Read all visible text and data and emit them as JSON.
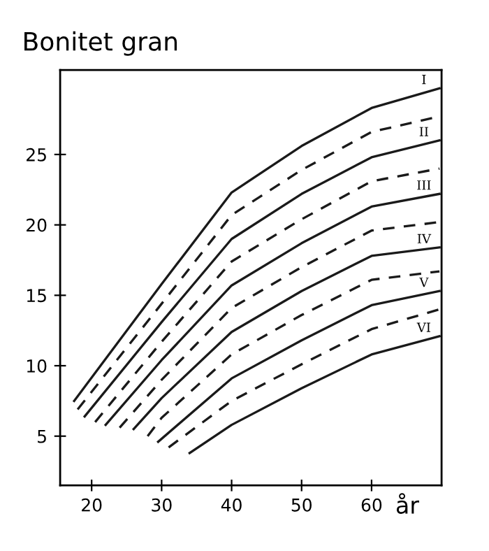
{
  "chart_data": {
    "type": "line",
    "title": "Bonitet gran",
    "xlabel": "år",
    "xlim": [
      15.5,
      70
    ],
    "ylim": [
      1.5,
      31
    ],
    "xticks": [
      20,
      30,
      40,
      50,
      60
    ],
    "yticks": [
      5,
      10,
      15,
      20,
      25
    ],
    "grid": false,
    "legend": false,
    "marker": "none",
    "series": [
      {
        "name": "I",
        "color": "#1a1a1a",
        "line_style": "solid",
        "x": [
          17.5,
          30,
          40,
          50,
          60,
          69.7
        ],
        "values": [
          7.5,
          15.8,
          22.3,
          25.6,
          28.3,
          29.7
        ]
      },
      {
        "color": "#1a1a1a",
        "line_style": "dashed",
        "x": [
          18,
          30,
          40,
          50,
          60,
          69.7
        ],
        "values": [
          6.9,
          14.4,
          20.7,
          23.9,
          26.6,
          27.7
        ]
      },
      {
        "name": "II",
        "color": "#1a1a1a",
        "line_style": "solid",
        "x": [
          19,
          30,
          40,
          50,
          60,
          69.7
        ],
        "values": [
          6.4,
          13.1,
          19.0,
          22.2,
          24.8,
          26.0
        ]
      },
      {
        "color": "#1a1a1a",
        "line_style": "dashed",
        "x": [
          20.5,
          30,
          40,
          50,
          60,
          69.7
        ],
        "values": [
          6.0,
          11.7,
          17.4,
          20.4,
          23.1,
          24.0
        ]
      },
      {
        "name": "III",
        "color": "#1a1a1a",
        "line_style": "solid",
        "x": [
          22,
          30,
          40,
          50,
          60,
          69.7
        ],
        "values": [
          5.8,
          10.4,
          15.7,
          18.7,
          21.3,
          22.2
        ]
      },
      {
        "color": "#1a1a1a",
        "line_style": "dashed",
        "x": [
          24,
          30,
          40,
          50,
          60,
          69.7
        ],
        "values": [
          5.6,
          9.0,
          14.1,
          17.0,
          19.6,
          20.2
        ]
      },
      {
        "name": "IV",
        "color": "#1a1a1a",
        "line_style": "solid",
        "x": [
          26,
          30,
          40,
          50,
          60,
          69.7
        ],
        "values": [
          5.5,
          7.7,
          12.4,
          15.3,
          17.8,
          18.4
        ]
      },
      {
        "color": "#1a1a1a",
        "line_style": "dashed",
        "x": [
          28,
          30,
          40,
          50,
          60,
          69.7
        ],
        "values": [
          5.0,
          6.3,
          10.8,
          13.6,
          16.1,
          16.7
        ]
      },
      {
        "name": "V",
        "color": "#1a1a1a",
        "line_style": "solid",
        "x": [
          29.5,
          40,
          50,
          60,
          69.7
        ],
        "values": [
          4.6,
          9.1,
          11.8,
          14.3,
          15.3
        ]
      },
      {
        "color": "#1a1a1a",
        "line_style": "dashed",
        "x": [
          31,
          40,
          50,
          60,
          69.7
        ],
        "values": [
          4.2,
          7.5,
          10.1,
          12.6,
          14.0
        ]
      },
      {
        "name": "VI",
        "color": "#1a1a1a",
        "line_style": "solid",
        "x": [
          34,
          40,
          50,
          60,
          69.7
        ],
        "values": [
          3.8,
          5.8,
          8.4,
          10.8,
          12.1
        ]
      }
    ]
  }
}
